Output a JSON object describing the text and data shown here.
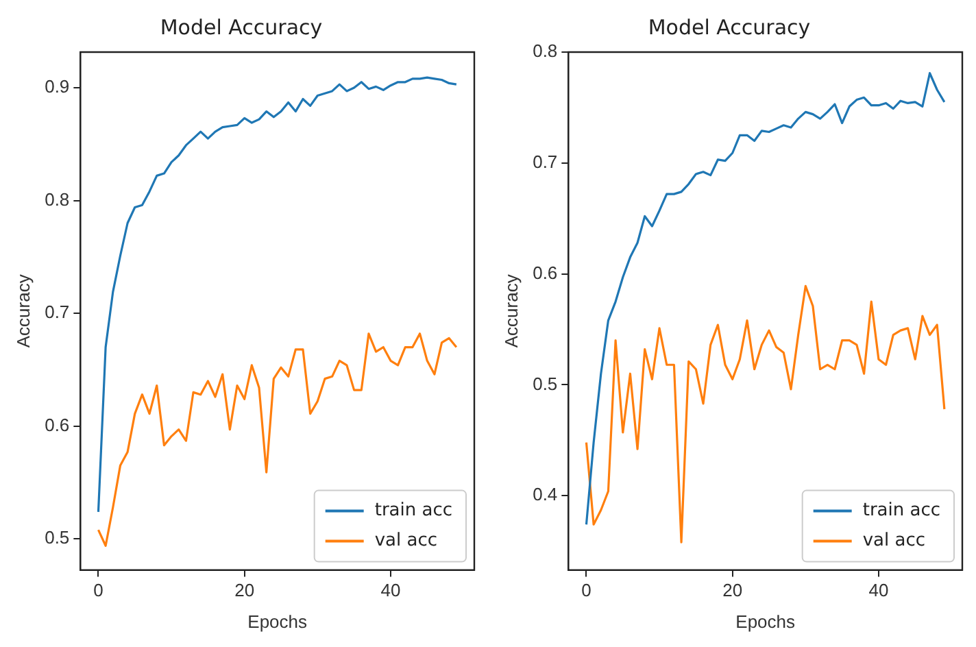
{
  "chart_data": [
    {
      "type": "line",
      "title": "Model Accuracy",
      "xlabel": "Epochs",
      "ylabel": "Accuracy",
      "x": [
        0,
        1,
        2,
        3,
        4,
        5,
        6,
        7,
        8,
        9,
        10,
        11,
        12,
        13,
        14,
        15,
        16,
        17,
        18,
        19,
        20,
        21,
        22,
        23,
        24,
        25,
        26,
        27,
        28,
        29,
        30,
        31,
        32,
        33,
        34,
        35,
        36,
        37,
        38,
        39,
        40,
        41,
        42,
        43,
        44,
        45,
        46,
        47,
        48,
        49
      ],
      "xlim": [
        -2.45,
        51.45
      ],
      "xticks": [
        0,
        20,
        40
      ],
      "ylim": [
        0.4725,
        0.9316
      ],
      "yticks": [
        0.5,
        0.6,
        0.7,
        0.8,
        0.9
      ],
      "grid": false,
      "legend": "bottom right",
      "marker": "none",
      "line_style": "solid",
      "series": [
        {
          "name": "train acc",
          "color": "#1f77b4",
          "values": [
            0.524,
            0.67,
            0.719,
            0.751,
            0.78,
            0.794,
            0.796,
            0.808,
            0.822,
            0.824,
            0.834,
            0.84,
            0.849,
            0.855,
            0.861,
            0.855,
            0.861,
            0.865,
            0.866,
            0.867,
            0.873,
            0.869,
            0.872,
            0.879,
            0.874,
            0.879,
            0.887,
            0.879,
            0.89,
            0.884,
            0.893,
            0.895,
            0.897,
            0.903,
            0.897,
            0.9,
            0.905,
            0.899,
            0.901,
            0.898,
            0.902,
            0.905,
            0.905,
            0.908,
            0.908,
            0.909,
            0.908,
            0.907,
            0.904,
            0.903
          ]
        },
        {
          "name": "val acc",
          "color": "#ff7f0e",
          "values": [
            0.508,
            0.494,
            0.528,
            0.565,
            0.577,
            0.611,
            0.628,
            0.611,
            0.636,
            0.583,
            0.591,
            0.597,
            0.587,
            0.63,
            0.628,
            0.64,
            0.626,
            0.646,
            0.597,
            0.636,
            0.624,
            0.654,
            0.634,
            0.559,
            0.642,
            0.652,
            0.644,
            0.668,
            0.668,
            0.611,
            0.622,
            0.642,
            0.644,
            0.658,
            0.654,
            0.632,
            0.632,
            0.682,
            0.666,
            0.67,
            0.658,
            0.654,
            0.67,
            0.67,
            0.682,
            0.658,
            0.646,
            0.674,
            0.678,
            0.67
          ]
        }
      ]
    },
    {
      "type": "line",
      "title": "Model Accuracy",
      "xlabel": "Epochs",
      "ylabel": "Accuracy",
      "x": [
        0,
        1,
        2,
        3,
        4,
        5,
        6,
        7,
        8,
        9,
        10,
        11,
        12,
        13,
        14,
        15,
        16,
        17,
        18,
        19,
        20,
        21,
        22,
        23,
        24,
        25,
        26,
        27,
        28,
        29,
        30,
        31,
        32,
        33,
        34,
        35,
        36,
        37,
        38,
        39,
        40,
        41,
        42,
        43,
        44,
        45,
        46,
        47,
        48,
        49
      ],
      "xlim": [
        -2.45,
        51.45
      ],
      "xticks": [
        0,
        20,
        40
      ],
      "ylim": [
        0.333,
        0.8
      ],
      "yticks": [
        0.4,
        0.5,
        0.6,
        0.7,
        0.8
      ],
      "grid": false,
      "legend": "bottom right",
      "marker": "none",
      "line_style": "solid",
      "series": [
        {
          "name": "train acc",
          "color": "#1f77b4",
          "values": [
            0.374,
            0.448,
            0.51,
            0.558,
            0.575,
            0.597,
            0.615,
            0.628,
            0.652,
            0.643,
            0.657,
            0.672,
            0.672,
            0.674,
            0.681,
            0.69,
            0.692,
            0.689,
            0.703,
            0.702,
            0.709,
            0.725,
            0.725,
            0.72,
            0.729,
            0.728,
            0.731,
            0.734,
            0.732,
            0.74,
            0.746,
            0.744,
            0.74,
            0.746,
            0.753,
            0.736,
            0.751,
            0.757,
            0.759,
            0.752,
            0.752,
            0.754,
            0.749,
            0.756,
            0.754,
            0.755,
            0.751,
            0.781,
            0.766,
            0.755
          ]
        },
        {
          "name": "val acc",
          "color": "#ff7f0e",
          "values": [
            0.448,
            0.374,
            0.387,
            0.404,
            0.54,
            0.457,
            0.51,
            0.442,
            0.532,
            0.505,
            0.551,
            0.518,
            0.518,
            0.358,
            0.521,
            0.514,
            0.483,
            0.536,
            0.554,
            0.518,
            0.505,
            0.523,
            0.558,
            0.514,
            0.536,
            0.549,
            0.534,
            0.529,
            0.496,
            0.545,
            0.589,
            0.571,
            0.514,
            0.518,
            0.514,
            0.54,
            0.54,
            0.536,
            0.51,
            0.575,
            0.523,
            0.518,
            0.545,
            0.549,
            0.551,
            0.523,
            0.562,
            0.545,
            0.554,
            0.478
          ]
        }
      ]
    }
  ]
}
